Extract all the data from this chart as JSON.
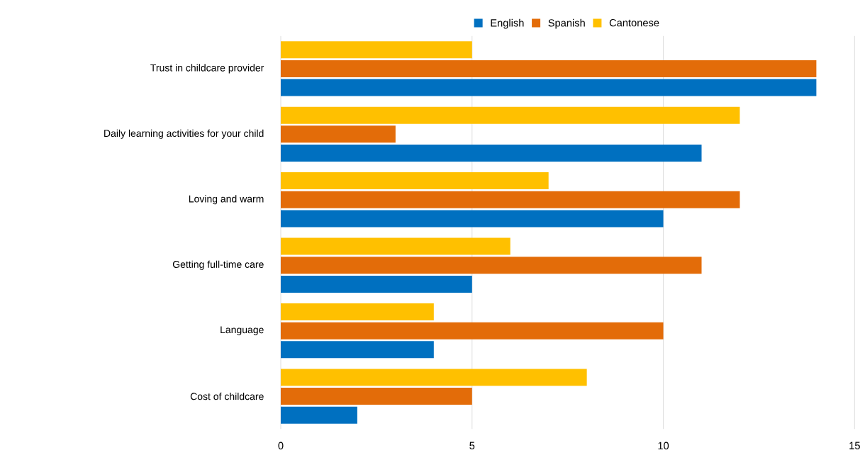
{
  "chart_data": {
    "type": "bar",
    "orientation": "horizontal",
    "categories": [
      "Trust in childcare provider",
      "Daily learning activities for your child",
      "Loving and warm",
      "Getting full-time care",
      "Language",
      "Cost of childcare"
    ],
    "series": [
      {
        "name": "English",
        "color": "#0070c0",
        "values": [
          14,
          11,
          10,
          5,
          4,
          2
        ]
      },
      {
        "name": "Spanish",
        "color": "#e36c09",
        "values": [
          14,
          3,
          12,
          11,
          10,
          5
        ]
      },
      {
        "name": "Cantonese",
        "color": "#ffc000",
        "values": [
          5,
          12,
          7,
          6,
          4,
          8
        ]
      }
    ],
    "xlim": [
      0,
      15
    ],
    "xticks": [
      0,
      5,
      10,
      15
    ],
    "grid": "x",
    "legend": "top"
  }
}
